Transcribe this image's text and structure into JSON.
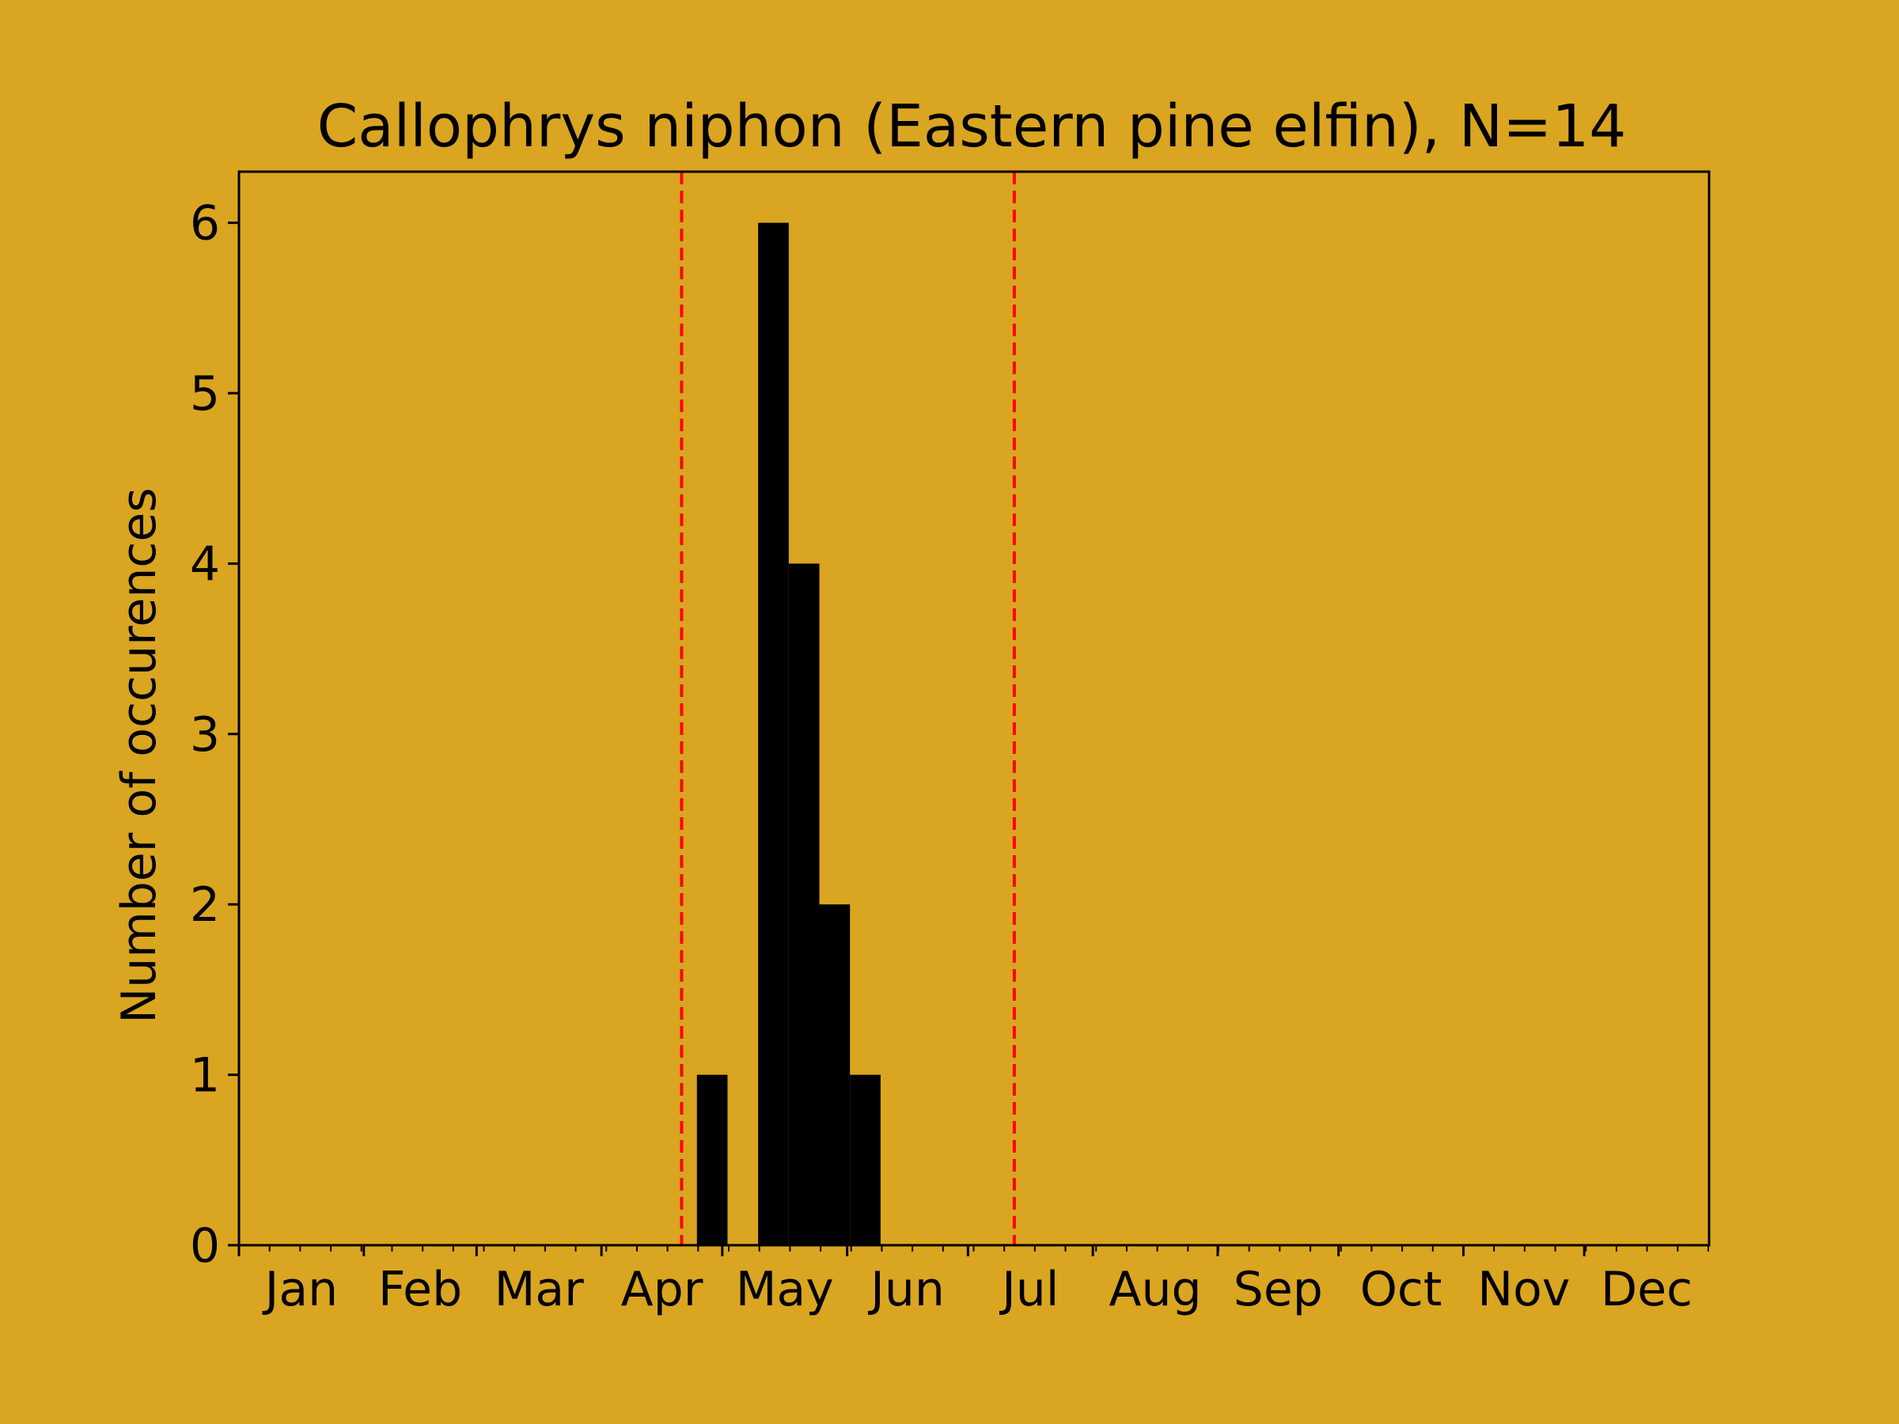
{
  "chart_data": {
    "type": "bar",
    "title": "Callophrys niphon (Eastern pine elfin), N=14",
    "xlabel": "",
    "ylabel": "Number of occurences",
    "xlim": [
      1,
      366
    ],
    "ylim": [
      0,
      6.3
    ],
    "month_ticks": [
      {
        "label": "Jan",
        "day": 1
      },
      {
        "label": "Feb",
        "day": 32
      },
      {
        "label": "Mar",
        "day": 60
      },
      {
        "label": "Apr",
        "day": 91
      },
      {
        "label": "May",
        "day": 121
      },
      {
        "label": "Jun",
        "day": 152
      },
      {
        "label": "Jul",
        "day": 182
      },
      {
        "label": "Aug",
        "day": 213
      },
      {
        "label": "Sep",
        "day": 244
      },
      {
        "label": "Oct",
        "day": 274
      },
      {
        "label": "Nov",
        "day": 305
      },
      {
        "label": "Dec",
        "day": 335
      }
    ],
    "y_ticks": [
      0,
      1,
      2,
      3,
      4,
      5,
      6
    ],
    "minor_tick_step_days": 7.6,
    "bins": [
      {
        "start": 114.7,
        "end": 122.3,
        "count": 1
      },
      {
        "start": 122.3,
        "end": 129.9,
        "count": 0
      },
      {
        "start": 129.9,
        "end": 137.5,
        "count": 6
      },
      {
        "start": 137.5,
        "end": 145.1,
        "count": 4
      },
      {
        "start": 145.1,
        "end": 152.7,
        "count": 2
      },
      {
        "start": 152.7,
        "end": 160.3,
        "count": 1
      }
    ],
    "vlines": [
      110.9,
      193.5
    ],
    "colors": {
      "background": "#DAA520",
      "bars": "#000000",
      "vlines": "#FF0000"
    },
    "grid": false,
    "legend": "none"
  }
}
